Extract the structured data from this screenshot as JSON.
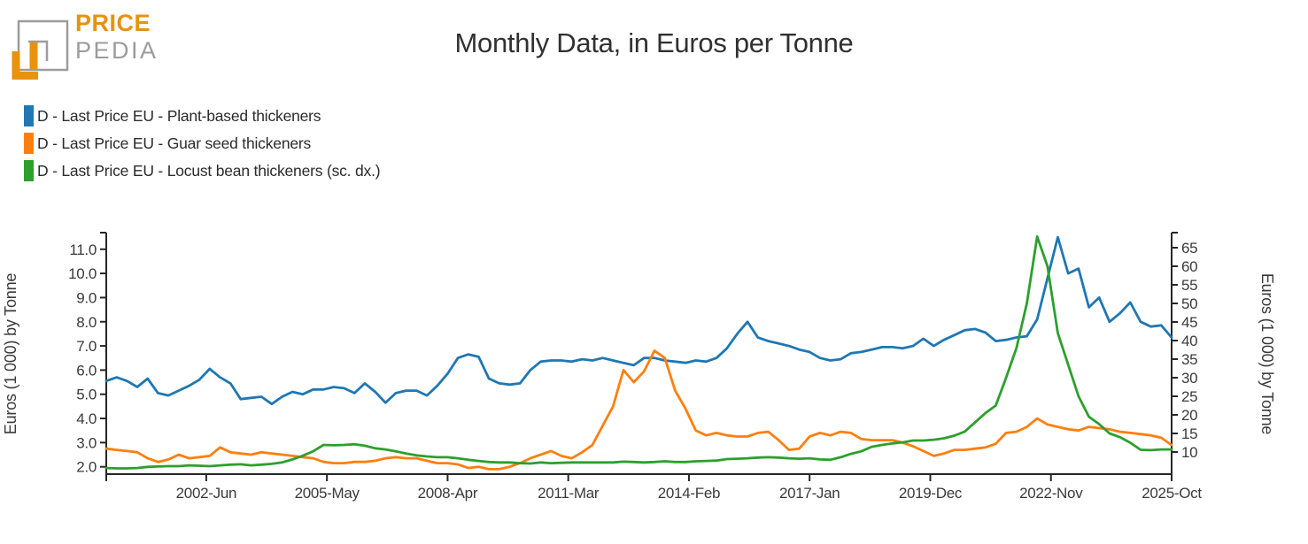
{
  "logo": {
    "word1": "PRICE",
    "word2": "PEDIA",
    "orange": "#e8920d",
    "gray": "#9c9c9c"
  },
  "title": "Monthly Data, in Euros per Tonne",
  "legend": [
    {
      "label": "D - Last Price EU - Plant-based thickeners",
      "color": "#1f77b4"
    },
    {
      "label": "D - Last Price EU - Guar seed thickeners",
      "color": "#ff7f0e"
    },
    {
      "label": "D - Last Price EU - Locust bean thickeners (sc. dx.)",
      "color": "#2ca02c"
    }
  ],
  "chart_data": {
    "type": "line",
    "title": "Monthly Data, in Euros per Tonne",
    "grid": false,
    "legend_position": "top-left",
    "x_axis": {
      "start": "2000-01",
      "end": "2025-10",
      "points_step_months": 3,
      "ticks": [
        {
          "label": "2002-Jun",
          "month": 29
        },
        {
          "label": "2005-May",
          "month": 64
        },
        {
          "label": "2008-Apr",
          "month": 99
        },
        {
          "label": "2011-Mar",
          "month": 134
        },
        {
          "label": "2014-Feb",
          "month": 169
        },
        {
          "label": "2017-Jan",
          "month": 204
        },
        {
          "label": "2019-Dec",
          "month": 239
        },
        {
          "label": "2022-Nov",
          "month": 274
        },
        {
          "label": "2025-Oct",
          "month": 309
        }
      ]
    },
    "left_axis": {
      "label": "Euros (1 000) by Tonne",
      "ticks": [
        2,
        3,
        4,
        5,
        6,
        7,
        8,
        9,
        10,
        11
      ],
      "range": [
        1.7,
        11.7
      ]
    },
    "right_axis": {
      "label": "Euros (1 000) by Tonne",
      "ticks": [
        10,
        15,
        20,
        25,
        30,
        35,
        40,
        45,
        50,
        55,
        60,
        65
      ],
      "range": [
        4.0,
        69.0
      ]
    },
    "series": [
      {
        "id": "plant-based",
        "name": "D - Last Price EU - Plant-based thickeners",
        "axis": "left",
        "color": "#1f77b4",
        "values": [
          5.55,
          5.7,
          5.55,
          5.3,
          5.65,
          5.05,
          4.95,
          5.15,
          5.35,
          5.6,
          6.05,
          5.7,
          5.45,
          4.8,
          4.85,
          4.9,
          4.6,
          4.9,
          5.1,
          5.0,
          5.2,
          5.2,
          5.3,
          5.25,
          5.05,
          5.45,
          5.1,
          4.65,
          5.05,
          5.15,
          5.15,
          4.95,
          5.35,
          5.85,
          6.5,
          6.65,
          6.55,
          5.65,
          5.45,
          5.4,
          5.45,
          6.0,
          6.35,
          6.4,
          6.4,
          6.35,
          6.45,
          6.4,
          6.5,
          6.4,
          6.3,
          6.2,
          6.5,
          6.5,
          6.4,
          6.35,
          6.3,
          6.4,
          6.35,
          6.5,
          6.9,
          7.5,
          8.0,
          7.35,
          7.2,
          7.1,
          7.0,
          6.85,
          6.75,
          6.5,
          6.4,
          6.45,
          6.7,
          6.75,
          6.85,
          6.95,
          6.95,
          6.9,
          7.0,
          7.3,
          7.0,
          7.25,
          7.45,
          7.65,
          7.7,
          7.55,
          7.2,
          7.25,
          7.35,
          7.4,
          8.1,
          9.8,
          11.5,
          10.0,
          10.2,
          8.6,
          9.0,
          8.0,
          8.35,
          8.8,
          8.0,
          7.8,
          7.85,
          7.35
        ]
      },
      {
        "id": "guar-seed",
        "name": "D - Last Price EU - Guar seed thickeners",
        "axis": "left",
        "color": "#ff7f0e",
        "values": [
          2.75,
          2.7,
          2.65,
          2.6,
          2.35,
          2.2,
          2.3,
          2.5,
          2.35,
          2.4,
          2.45,
          2.8,
          2.6,
          2.55,
          2.5,
          2.6,
          2.55,
          2.5,
          2.45,
          2.4,
          2.35,
          2.2,
          2.15,
          2.15,
          2.2,
          2.2,
          2.25,
          2.35,
          2.4,
          2.35,
          2.35,
          2.25,
          2.15,
          2.15,
          2.1,
          1.95,
          2.0,
          1.9,
          1.9,
          2.0,
          2.15,
          2.35,
          2.5,
          2.65,
          2.45,
          2.35,
          2.6,
          2.9,
          3.7,
          4.5,
          6.0,
          5.5,
          5.95,
          6.8,
          6.5,
          5.15,
          4.4,
          3.5,
          3.3,
          3.4,
          3.3,
          3.25,
          3.25,
          3.4,
          3.45,
          3.1,
          2.7,
          2.75,
          3.25,
          3.4,
          3.3,
          3.45,
          3.4,
          3.15,
          3.1,
          3.1,
          3.1,
          3.0,
          2.85,
          2.65,
          2.45,
          2.55,
          2.7,
          2.7,
          2.75,
          2.8,
          2.95,
          3.4,
          3.45,
          3.65,
          4.0,
          3.75,
          3.65,
          3.55,
          3.5,
          3.65,
          3.6,
          3.55,
          3.45,
          3.4,
          3.35,
          3.3,
          3.2,
          2.9
        ]
      },
      {
        "id": "locust-bean",
        "name": "D - Last Price EU - Locust bean thickeners (sc. dx.)",
        "axis": "right",
        "color": "#2ca02c",
        "values": [
          5.7,
          5.6,
          5.6,
          5.7,
          6.0,
          6.1,
          6.2,
          6.2,
          6.4,
          6.3,
          6.2,
          6.4,
          6.6,
          6.7,
          6.4,
          6.6,
          6.8,
          7.2,
          8.0,
          9.0,
          10.2,
          11.9,
          11.8,
          11.9,
          12.1,
          11.7,
          11.0,
          10.7,
          10.2,
          9.6,
          9.1,
          8.8,
          8.6,
          8.6,
          8.3,
          7.9,
          7.6,
          7.3,
          7.2,
          7.2,
          7.0,
          6.9,
          7.2,
          7.0,
          7.1,
          7.2,
          7.2,
          7.2,
          7.2,
          7.2,
          7.4,
          7.3,
          7.2,
          7.3,
          7.5,
          7.3,
          7.3,
          7.5,
          7.6,
          7.7,
          8.1,
          8.2,
          8.3,
          8.5,
          8.6,
          8.5,
          8.3,
          8.2,
          8.3,
          8.0,
          7.9,
          8.6,
          9.5,
          10.2,
          11.4,
          11.9,
          12.3,
          12.6,
          13.1,
          13.1,
          13.3,
          13.7,
          14.4,
          15.5,
          18.0,
          20.5,
          22.5,
          30.0,
          38.0,
          50.0,
          68.0,
          60.0,
          42.0,
          33.5,
          25.0,
          19.5,
          17.5,
          15.0,
          14.0,
          12.5,
          10.6,
          10.5,
          10.7,
          10.7
        ]
      }
    ]
  }
}
